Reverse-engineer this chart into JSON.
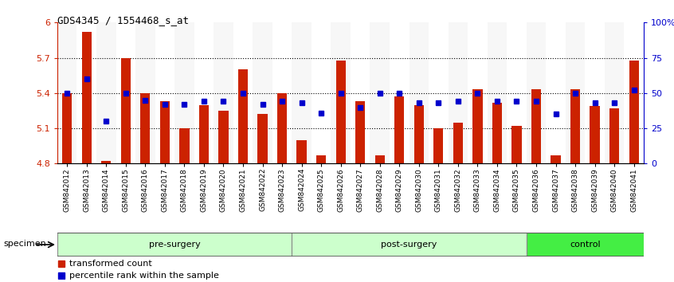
{
  "title": "GDS4345 / 1554468_s_at",
  "samples": [
    "GSM842012",
    "GSM842013",
    "GSM842014",
    "GSM842015",
    "GSM842016",
    "GSM842017",
    "GSM842018",
    "GSM842019",
    "GSM842020",
    "GSM842021",
    "GSM842022",
    "GSM842023",
    "GSM842024",
    "GSM842025",
    "GSM842026",
    "GSM842027",
    "GSM842028",
    "GSM842029",
    "GSM842030",
    "GSM842031",
    "GSM842032",
    "GSM842033",
    "GSM842034",
    "GSM842035",
    "GSM842036",
    "GSM842037",
    "GSM842038",
    "GSM842039",
    "GSM842040",
    "GSM842041"
  ],
  "bar_values": [
    5.4,
    5.92,
    4.82,
    5.7,
    5.4,
    5.33,
    5.1,
    5.3,
    5.25,
    5.6,
    5.22,
    5.4,
    5.0,
    4.87,
    5.68,
    5.33,
    4.87,
    5.37,
    5.3,
    5.1,
    5.15,
    5.43,
    5.32,
    5.12,
    5.43,
    4.87,
    5.43,
    5.29,
    5.27,
    5.68
  ],
  "percentile_values": [
    50,
    60,
    30,
    50,
    45,
    42,
    42,
    44,
    44,
    50,
    42,
    44,
    43,
    36,
    50,
    40,
    50,
    50,
    43,
    43,
    44,
    50,
    44,
    44,
    44,
    35,
    50,
    43,
    43,
    52
  ],
  "groups": [
    {
      "label": "pre-surgery",
      "start": 0,
      "end": 12
    },
    {
      "label": "post-surgery",
      "start": 12,
      "end": 24
    },
    {
      "label": "control",
      "start": 24,
      "end": 30
    }
  ],
  "group_colors": [
    "#ccffcc",
    "#ccffcc",
    "#44ee44"
  ],
  "ymin": 4.8,
  "ymax": 6.0,
  "yticks": [
    4.8,
    5.1,
    5.4,
    5.7,
    6.0
  ],
  "ytick_labels": [
    "4.8",
    "5.1",
    "5.4",
    "5.7",
    "6"
  ],
  "right_yticks": [
    0,
    25,
    50,
    75,
    100
  ],
  "right_ytick_labels": [
    "0",
    "25",
    "50",
    "75",
    "100%"
  ],
  "bar_color": "#cc2200",
  "dot_color": "#0000cc",
  "bar_width": 0.5,
  "legend_items": [
    {
      "label": "transformed count",
      "color": "#cc2200"
    },
    {
      "label": "percentile rank within the sample",
      "color": "#0000cc"
    }
  ],
  "specimen_label": "specimen"
}
